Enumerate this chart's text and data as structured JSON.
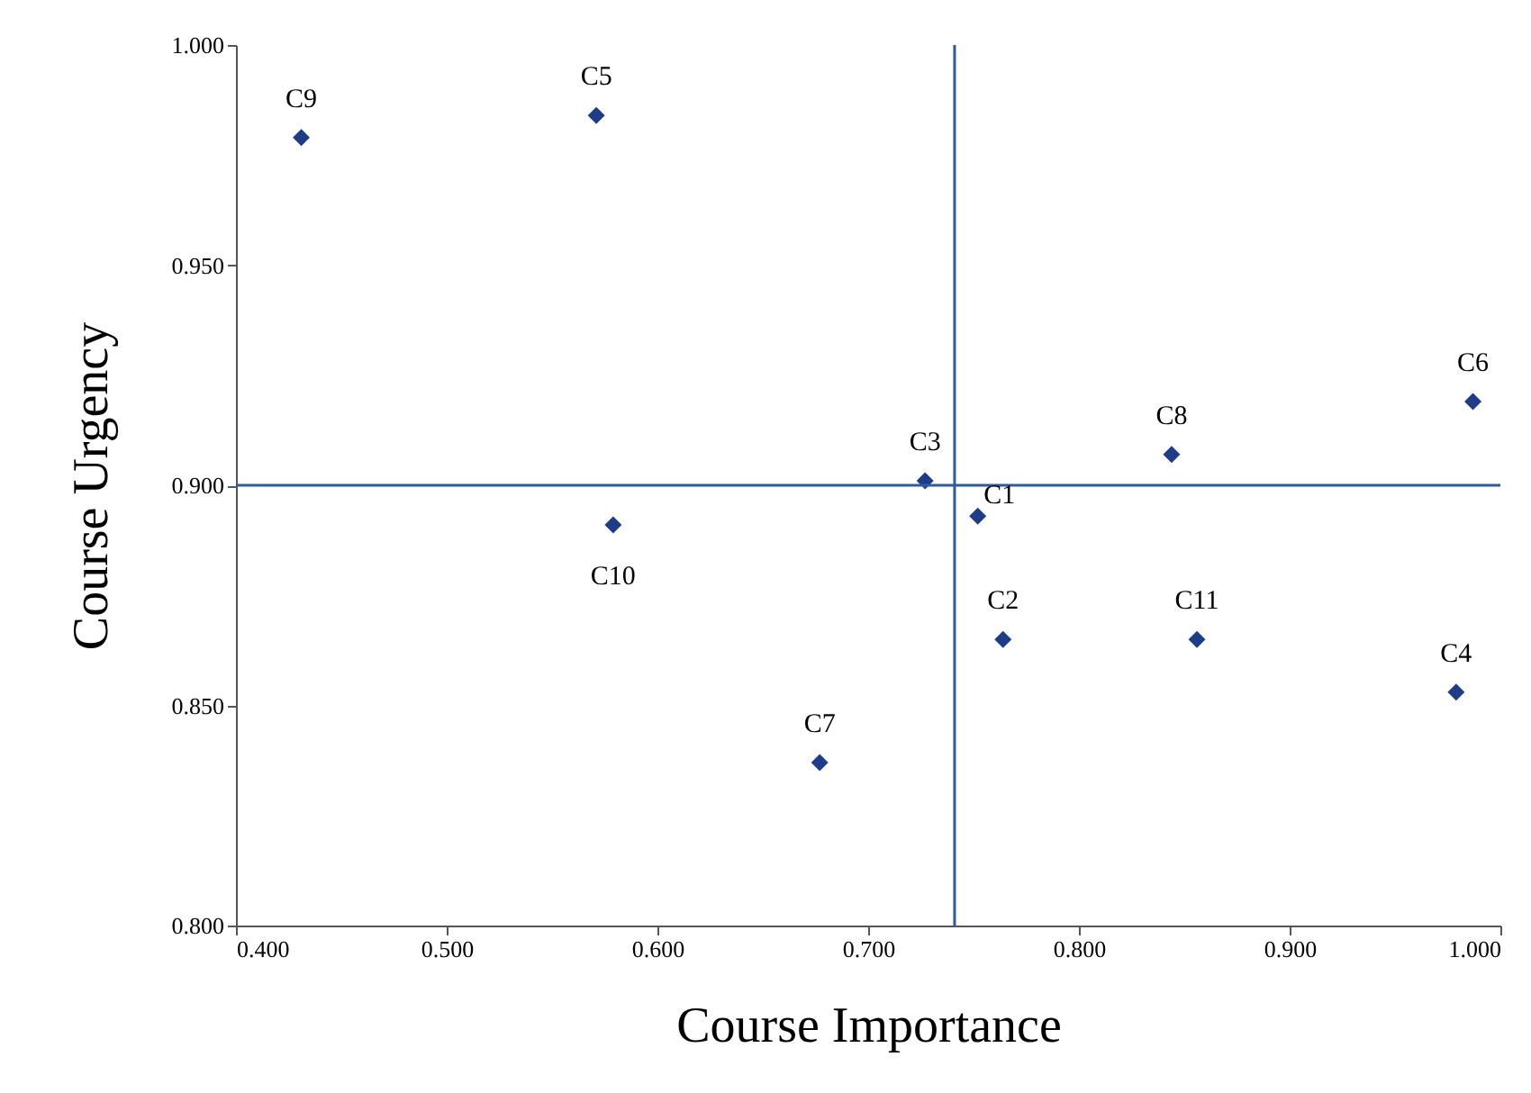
{
  "chart_data": {
    "type": "scatter",
    "xlabel": "Course Importance",
    "ylabel": "Course Urgency",
    "x": [
      0.752,
      0.764,
      0.727,
      0.979,
      0.571,
      0.987,
      0.677,
      0.844,
      0.431,
      0.579,
      0.856
    ],
    "series": [
      {
        "color": "#1f3c88",
        "values": [
          0.893,
          0.865,
          0.901,
          0.853,
          0.984,
          0.919,
          0.837,
          0.907,
          0.979,
          0.891,
          0.865
        ]
      }
    ],
    "marker": "diamond",
    "grid": false,
    "xlim": [
      0.4,
      1.0
    ],
    "ylim": [
      0.8,
      1.0
    ],
    "xticks": [
      {
        "value": 0.4,
        "label": "0.400"
      },
      {
        "value": 0.5,
        "label": "0.500"
      },
      {
        "value": 0.6,
        "label": "0.600"
      },
      {
        "value": 0.7,
        "label": "0.700"
      },
      {
        "value": 0.8,
        "label": "0.800"
      },
      {
        "value": 0.9,
        "label": "0.900"
      },
      {
        "value": 1.0,
        "label": "1.000"
      }
    ],
    "yticks": [
      {
        "value": 0.8,
        "label": "0.800"
      },
      {
        "value": 0.85,
        "label": "0.850"
      },
      {
        "value": 0.9,
        "label": "0.900"
      },
      {
        "value": 0.95,
        "label": "0.950"
      },
      {
        "value": 1.0,
        "label": "1.000"
      }
    ],
    "ref_lines": [
      {
        "axis": "x",
        "value": 0.741,
        "color": "#2e5b9a"
      },
      {
        "axis": "y",
        "value": 0.9,
        "color": "#2e5b9a"
      }
    ],
    "annotations": [
      {
        "text": "C1",
        "x": 0.752,
        "y": 0.893
      },
      {
        "text": "C2",
        "x": 0.764,
        "y": 0.865
      },
      {
        "text": "C3",
        "x": 0.727,
        "y": 0.901
      },
      {
        "text": "C4",
        "x": 0.979,
        "y": 0.853
      },
      {
        "text": "C5",
        "x": 0.571,
        "y": 0.984
      },
      {
        "text": "C6",
        "x": 0.987,
        "y": 0.919
      },
      {
        "text": "C7",
        "x": 0.677,
        "y": 0.837
      },
      {
        "text": "C8",
        "x": 0.844,
        "y": 0.907
      },
      {
        "text": "C9",
        "x": 0.431,
        "y": 0.979
      },
      {
        "text": "C10",
        "x": 0.579,
        "y": 0.891
      },
      {
        "text": "C11",
        "x": 0.856,
        "y": 0.865
      }
    ]
  }
}
